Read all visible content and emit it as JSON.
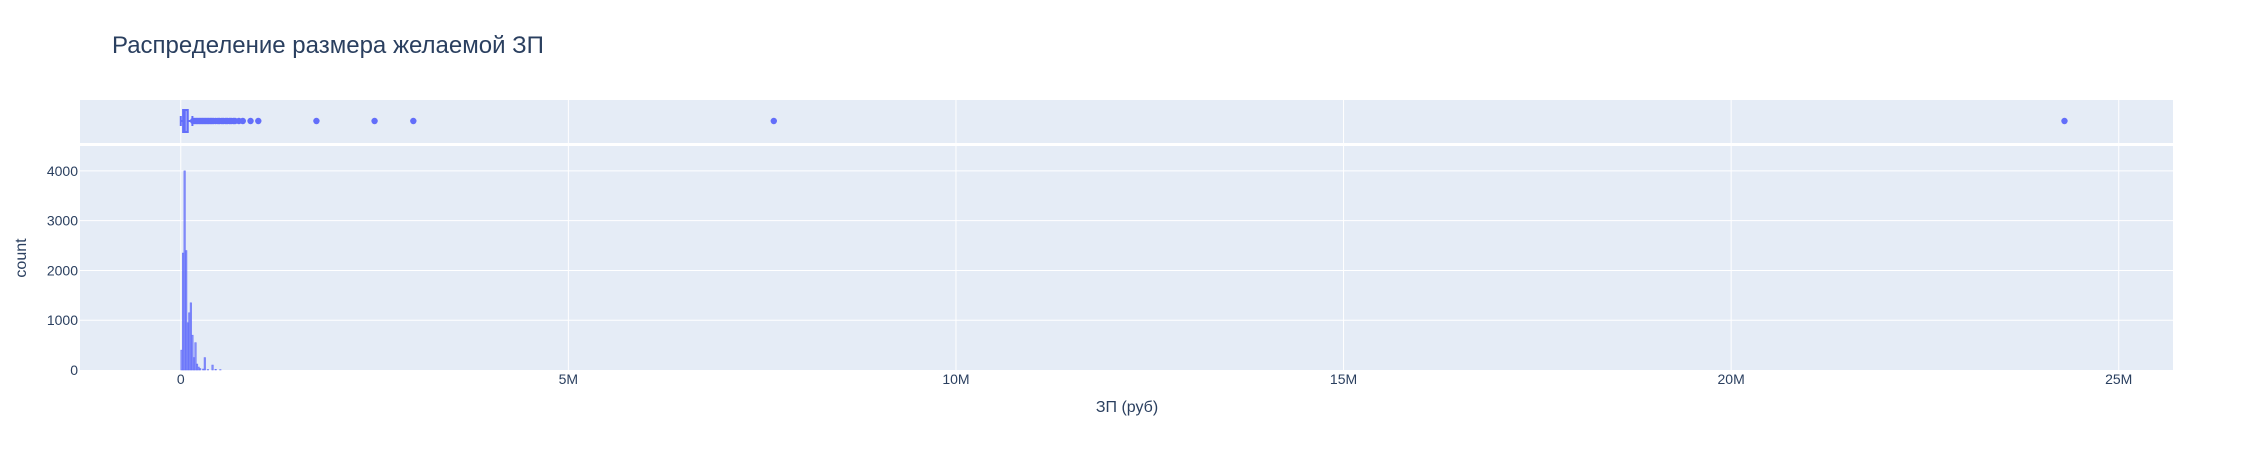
{
  "chart_data": {
    "type": "histogram",
    "title": "Распределение размера желаемой ЗП",
    "xlabel": "ЗП (руб)",
    "ylabel": "count",
    "xlim": [
      -1300000,
      25700000
    ],
    "ylim": [
      0,
      4500
    ],
    "x_ticks": [
      {
        "value": 0,
        "label": "0"
      },
      {
        "value": 5000000,
        "label": "5M"
      },
      {
        "value": 10000000,
        "label": "10M"
      },
      {
        "value": 15000000,
        "label": "15M"
      },
      {
        "value": 20000000,
        "label": "20M"
      },
      {
        "value": 25000000,
        "label": "25M"
      }
    ],
    "y_ticks": [
      {
        "value": 0,
        "label": "0"
      },
      {
        "value": 1000,
        "label": "1000"
      },
      {
        "value": 2000,
        "label": "2000"
      },
      {
        "value": 3000,
        "label": "3000"
      },
      {
        "value": 4000,
        "label": "4000"
      }
    ],
    "histogram": {
      "bin_width": 20000,
      "bins": [
        {
          "x": 10000,
          "count": 400
        },
        {
          "x": 30000,
          "count": 2350
        },
        {
          "x": 50000,
          "count": 4000
        },
        {
          "x": 70000,
          "count": 2400
        },
        {
          "x": 90000,
          "count": 950
        },
        {
          "x": 110000,
          "count": 1150
        },
        {
          "x": 130000,
          "count": 1350
        },
        {
          "x": 150000,
          "count": 700
        },
        {
          "x": 170000,
          "count": 250
        },
        {
          "x": 190000,
          "count": 550
        },
        {
          "x": 210000,
          "count": 120
        },
        {
          "x": 230000,
          "count": 60
        },
        {
          "x": 250000,
          "count": 30
        },
        {
          "x": 290000,
          "count": 20
        },
        {
          "x": 310000,
          "count": 250
        },
        {
          "x": 350000,
          "count": 10
        },
        {
          "x": 410000,
          "count": 100
        },
        {
          "x": 450000,
          "count": 15
        },
        {
          "x": 510000,
          "count": 8
        }
      ]
    },
    "marginal_box": {
      "q1": 30000,
      "median": 50000,
      "q3": 90000,
      "lower_fence": 0,
      "upper_fence": 150000,
      "outliers": [
        160000,
        180000,
        200000,
        220000,
        240000,
        260000,
        280000,
        300000,
        320000,
        340000,
        360000,
        380000,
        400000,
        420000,
        450000,
        480000,
        500000,
        530000,
        550000,
        580000,
        600000,
        630000,
        650000,
        680000,
        700000,
        750000,
        800000,
        900000,
        1000000,
        1750000,
        2500000,
        3000000,
        7650000,
        24300000
      ]
    },
    "colors": {
      "series": "#636efa",
      "plot_bg": "#e5ecf6",
      "grid": "#ffffff",
      "text": "#2a3f5f"
    }
  }
}
